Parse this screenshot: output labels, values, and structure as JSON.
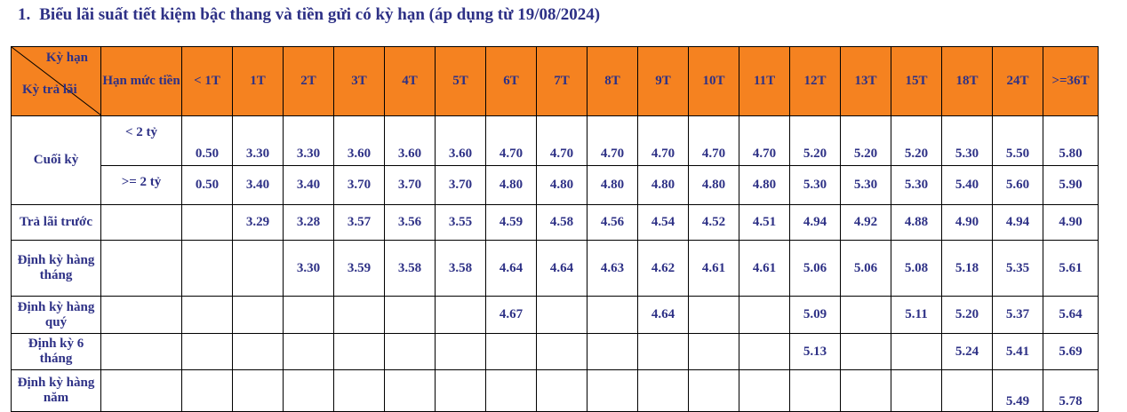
{
  "title": {
    "number": "1.",
    "text": "Biểu lãi suất tiết kiệm bậc thang và tiền gửi có kỳ hạn (áp dụng từ 19/08/2024)"
  },
  "header": {
    "corner_top": "Kỳ hạn",
    "corner_bottom": "Kỳ trả lãi",
    "amount_label": "Hạn mức tiền",
    "terms": [
      "< 1T",
      "1T",
      "2T",
      "3T",
      "4T",
      "5T",
      "6T",
      "7T",
      "8T",
      "9T",
      "10T",
      "11T",
      "12T",
      "13T",
      "15T",
      "18T",
      "24T",
      ">=36T"
    ]
  },
  "rows": {
    "cuoi_ky": {
      "label": "Cuối kỳ",
      "tiers": [
        {
          "amount": "< 2 tỷ",
          "values": [
            "0.50",
            "3.30",
            "3.30",
            "3.60",
            "3.60",
            "3.60",
            "4.70",
            "4.70",
            "4.70",
            "4.70",
            "4.70",
            "4.70",
            "5.20",
            "5.20",
            "5.20",
            "5.30",
            "5.50",
            "5.80"
          ]
        },
        {
          "amount": ">= 2 tỷ",
          "values": [
            "0.50",
            "3.40",
            "3.40",
            "3.70",
            "3.70",
            "3.70",
            "4.80",
            "4.80",
            "4.80",
            "4.80",
            "4.80",
            "4.80",
            "5.30",
            "5.30",
            "5.30",
            "5.40",
            "5.60",
            "5.90"
          ]
        }
      ]
    },
    "others": [
      {
        "label": "Trả lãi trước",
        "values": [
          "",
          "3.29",
          "3.28",
          "3.57",
          "3.56",
          "3.55",
          "4.59",
          "4.58",
          "4.56",
          "4.54",
          "4.52",
          "4.51",
          "4.94",
          "4.92",
          "4.88",
          "4.90",
          "4.94",
          "4.90"
        ]
      },
      {
        "label": "Định kỳ hàng tháng",
        "values": [
          "",
          "",
          "3.30",
          "3.59",
          "3.58",
          "3.58",
          "4.64",
          "4.64",
          "4.63",
          "4.62",
          "4.61",
          "4.61",
          "5.06",
          "5.06",
          "5.08",
          "5.18",
          "5.35",
          "5.61"
        ]
      },
      {
        "label": "Định kỳ hàng quý",
        "values": [
          "",
          "",
          "",
          "",
          "",
          "",
          "4.67",
          "",
          "",
          "4.64",
          "",
          "",
          "5.09",
          "",
          "5.11",
          "5.20",
          "5.37",
          "5.64"
        ]
      },
      {
        "label": "Định kỳ 6 tháng",
        "values": [
          "",
          "",
          "",
          "",
          "",
          "",
          "",
          "",
          "",
          "",
          "",
          "",
          "5.13",
          "",
          "",
          "5.24",
          "5.41",
          "5.69"
        ]
      },
      {
        "label": "Định kỳ hàng năm",
        "values": [
          "",
          "",
          "",
          "",
          "",
          "",
          "",
          "",
          "",
          "",
          "",
          "",
          "",
          "",
          "",
          "",
          "5.49",
          "5.78"
        ]
      }
    ]
  },
  "colors": {
    "header_bg": "#f58220",
    "text": "#2e3186",
    "border": "#000000"
  }
}
